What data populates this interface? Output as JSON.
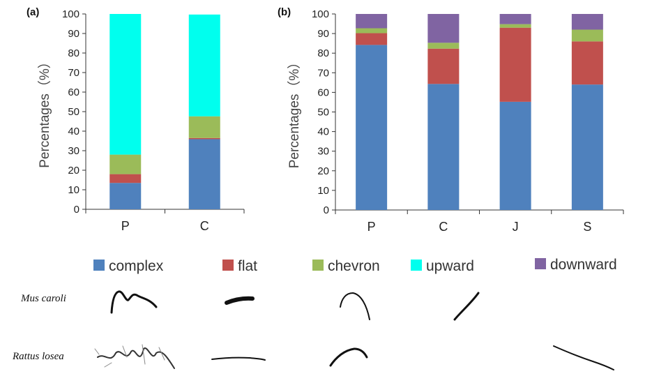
{
  "panel_labels": [
    "(a)",
    "(b)"
  ],
  "legend": [
    {
      "name": "complex",
      "color": "#4F81BD"
    },
    {
      "name": "flat",
      "color": "#C0504D"
    },
    {
      "name": "chevron",
      "color": "#9BBB59"
    },
    {
      "name": "upward",
      "color": "#00FFEE"
    },
    {
      "name": "downward",
      "color": "#8064A2"
    }
  ],
  "species": {
    "row1": "Mus caroli",
    "row2": "Rattus losea"
  },
  "chart_data": [
    {
      "type": "bar",
      "stacked": true,
      "panel": "(a)",
      "title": "",
      "xlabel": "",
      "ylabel": "Percentages（%）",
      "ylim": [
        0,
        100
      ],
      "yticks": [
        0,
        10,
        20,
        30,
        40,
        50,
        60,
        70,
        80,
        90,
        100
      ],
      "categories": [
        "P",
        "C"
      ],
      "series": [
        {
          "name": "complex",
          "color": "#4F81BD",
          "values": [
            13.5,
            35.9
          ]
        },
        {
          "name": "flat",
          "color": "#C0504D",
          "values": [
            4.5,
            0.6
          ]
        },
        {
          "name": "chevron",
          "color": "#9BBB59",
          "values": [
            10.0,
            11.1
          ]
        },
        {
          "name": "upward",
          "color": "#00FFEE",
          "values": [
            72.0,
            52.1
          ]
        },
        {
          "name": "downward",
          "color": "#8064A2",
          "values": [
            0,
            0
          ]
        }
      ]
    },
    {
      "type": "bar",
      "stacked": true,
      "panel": "(b)",
      "title": "",
      "xlabel": "",
      "ylabel": "Percentages（%）",
      "ylim": [
        0,
        100
      ],
      "yticks": [
        0,
        10,
        20,
        30,
        40,
        50,
        60,
        70,
        80,
        90,
        100
      ],
      "categories": [
        "P",
        "C",
        "J",
        "S"
      ],
      "series": [
        {
          "name": "complex",
          "color": "#4F81BD",
          "values": [
            84.2,
            64.3,
            55.2,
            64.0
          ]
        },
        {
          "name": "flat",
          "color": "#C0504D",
          "values": [
            6.0,
            18.0,
            37.8,
            22.0
          ]
        },
        {
          "name": "chevron",
          "color": "#9BBB59",
          "values": [
            2.5,
            3.0,
            1.8,
            6.0
          ]
        },
        {
          "name": "upward",
          "color": "#00FFEE",
          "values": [
            0,
            0,
            0,
            0
          ]
        },
        {
          "name": "downward",
          "color": "#8064A2",
          "values": [
            7.3,
            14.7,
            5.2,
            8.0
          ]
        }
      ]
    }
  ]
}
